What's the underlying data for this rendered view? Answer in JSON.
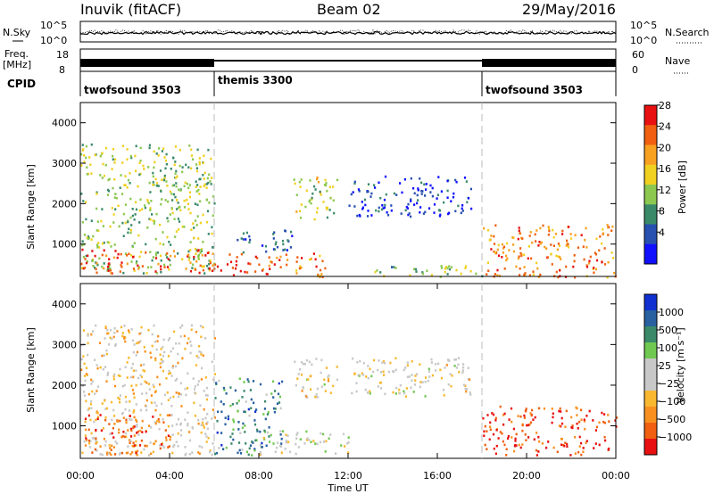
{
  "header": {
    "station": "Inuvik (fitACF)",
    "beam": "Beam 02",
    "date": "29/May/2016"
  },
  "summary": {
    "nsky_label": "N.Sky",
    "nsky_ticks": [
      "10^5",
      "10^0"
    ],
    "nsearch_label": "N.Search",
    "nsearch_ticks": [
      "10^5",
      "10^0"
    ],
    "freq_label": "Freq.",
    "freq_unit": "[MHz]",
    "freq_ticks": [
      "18",
      "8"
    ],
    "nave_label": "Nave",
    "nave_ticks": [
      "60",
      "0"
    ],
    "cpid_label": "CPID",
    "programs": [
      {
        "name": "twofsound 3503",
        "start_hour": 0
      },
      {
        "name": "themis 3300",
        "start_hour": 6
      },
      {
        "name": "twofsound 3503",
        "start_hour": 18
      }
    ]
  },
  "colors": {
    "power_scale": [
      "#1010ff",
      "#2850b0",
      "#3a8a6a",
      "#8cc850",
      "#f0d020",
      "#f8a020",
      "#f06010",
      "#e81010"
    ],
    "velocity_scale": [
      "#e81010",
      "#f06010",
      "#f89020",
      "#f8b830",
      "#c8c8c8",
      "#c8c8c8",
      "#70c850",
      "#3a8a6a",
      "#2860a0",
      "#1030d0"
    ]
  },
  "chart_data": [
    {
      "type": "heatmap",
      "name": "power-panel",
      "ylabel": "Slant Range [km]",
      "xlim": [
        0,
        24
      ],
      "ylim": [
        200,
        4500
      ],
      "yticks": [
        "1000",
        "2000",
        "3000",
        "4000"
      ],
      "colorbar": {
        "label": "Power [dB]",
        "ticks": [
          "4",
          "8",
          "12",
          "16",
          "20",
          "24",
          "28"
        ],
        "range": [
          0,
          30
        ]
      },
      "echo_regions": [
        {
          "t0": 0.0,
          "t1": 6.0,
          "r0": 300,
          "r1": 3500,
          "level": 0.45
        },
        {
          "t0": 0.0,
          "t1": 6.0,
          "r0": 300,
          "r1": 900,
          "level": 0.85
        },
        {
          "t0": 6.0,
          "t1": 9.0,
          "r0": 250,
          "r1": 800,
          "level": 0.85
        },
        {
          "t0": 7.0,
          "t1": 9.5,
          "r0": 800,
          "r1": 1400,
          "level": 0.2
        },
        {
          "t0": 9.0,
          "t1": 11.0,
          "r0": 200,
          "r1": 800,
          "level": 0.75
        },
        {
          "t0": 9.5,
          "t1": 11.5,
          "r0": 1600,
          "r1": 2700,
          "level": 0.5
        },
        {
          "t0": 12.0,
          "t1": 17.5,
          "r0": 1700,
          "r1": 2700,
          "level": 0.15
        },
        {
          "t0": 13.0,
          "t1": 18.0,
          "r0": 200,
          "r1": 500,
          "level": 0.4
        },
        {
          "t0": 18.0,
          "t1": 24.0,
          "r0": 200,
          "r1": 1500,
          "level": 0.75
        }
      ]
    },
    {
      "type": "heatmap",
      "name": "velocity-panel",
      "ylabel": "Slant Range [km]",
      "xlabel": "Time UT",
      "xlim": [
        0,
        24
      ],
      "ylim": [
        200,
        4500
      ],
      "yticks": [
        "1000",
        "2000",
        "3000",
        "4000"
      ],
      "xticks": [
        "00:00",
        "04:00",
        "08:00",
        "12:00",
        "16:00",
        "20:00",
        "00:00"
      ],
      "colorbar": {
        "label": "Velocity [m s⁻¹]",
        "ticks": [
          "1000",
          "500",
          "100",
          "25",
          "−25",
          "−100",
          "−500",
          "−1000"
        ]
      },
      "echo_regions": [
        {
          "t0": 0.0,
          "t1": 6.0,
          "r0": 300,
          "r1": 3500,
          "level": 0.4
        },
        {
          "t0": 0.0,
          "t1": 4.0,
          "r0": 300,
          "r1": 1300,
          "level": 0.15
        },
        {
          "t0": 6.0,
          "t1": 9.0,
          "r0": 300,
          "r1": 2200,
          "level": 0.75
        },
        {
          "t0": 8.0,
          "t1": 12.0,
          "r0": 300,
          "r1": 900,
          "level": 0.5
        },
        {
          "t0": 9.5,
          "t1": 11.5,
          "r0": 1700,
          "r1": 2700,
          "level": 0.45
        },
        {
          "t0": 12.0,
          "t1": 17.5,
          "r0": 1700,
          "r1": 2700,
          "level": 0.45
        },
        {
          "t0": 18.0,
          "t1": 24.0,
          "r0": 300,
          "r1": 1500,
          "level": 0.1
        }
      ]
    }
  ]
}
